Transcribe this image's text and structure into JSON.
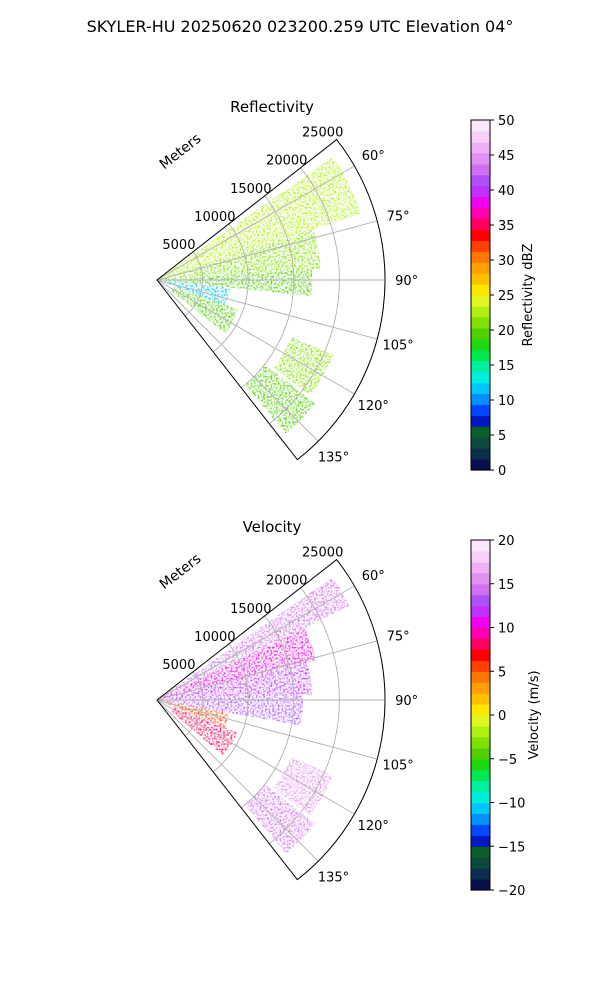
{
  "suptitle": "SKYLER-HU  20250620  023200.259 UTC Elevation 04°",
  "chart_data": [
    {
      "type": "heatmap",
      "subtype": "polar-sector-ppi",
      "title": "Reflectivity",
      "range_label": "Meters",
      "range_ticks": [
        5000,
        10000,
        15000,
        20000,
        25000
      ],
      "range_tick_labels": [
        "5000",
        "10000",
        "15000",
        "20000",
        "25000"
      ],
      "rmax": 25000,
      "theta_range_deg": [
        52,
        142
      ],
      "theta_ticks": [
        60,
        75,
        90,
        105,
        120,
        135
      ],
      "theta_tick_labels": [
        "60°",
        "75°",
        "90°",
        "105°",
        "120°",
        "135°"
      ],
      "grid": true,
      "colorbar": {
        "label": "Reflectivity dBZ",
        "min": 0,
        "max": 50,
        "ticks": [
          0,
          5,
          10,
          15,
          20,
          25,
          30,
          35,
          40,
          45,
          50
        ],
        "tick_labels": [
          "0",
          "5",
          "10",
          "15",
          "20",
          "25",
          "30",
          "35",
          "40",
          "45",
          "50"
        ],
        "colors": [
          "#08104d",
          "#0d2f4e",
          "#0b4a3a",
          "#0a5e2a",
          "#0018c0",
          "#0048ff",
          "#0090ff",
          "#00c8ff",
          "#00eedd",
          "#00f0a0",
          "#00e850",
          "#20d810",
          "#50d000",
          "#80e000",
          "#b0f010",
          "#e0f820",
          "#ffe800",
          "#ffc000",
          "#ffa000",
          "#ff7800",
          "#ff4000",
          "#ff0000",
          "#ff0060",
          "#ff00b0",
          "#f000f0",
          "#c030ff",
          "#b050ff",
          "#d070f0",
          "#e090f0",
          "#f0b0f8",
          "#f8d0fa",
          "#fce8fc"
        ]
      },
      "echo_regions": [
        {
          "theta": [
            55,
            72
          ],
          "range": [
            0,
            23500
          ],
          "value_dbz": 22
        },
        {
          "theta": [
            72,
            86
          ],
          "range": [
            0,
            18000
          ],
          "value_dbz": 21
        },
        {
          "theta": [
            86,
            96
          ],
          "range": [
            0,
            17000
          ],
          "value_dbz": 20
        },
        {
          "theta": [
            96,
            110
          ],
          "range": [
            0,
            8000
          ],
          "value_dbz": 12
        },
        {
          "theta": [
            110,
            128
          ],
          "range": [
            2000,
            9500
          ],
          "value_dbz": 19
        },
        {
          "theta": [
            113,
            127
          ],
          "range": [
            16000,
            21000
          ],
          "value_dbz": 21
        },
        {
          "theta": [
            128,
            140
          ],
          "range": [
            15000,
            22000
          ],
          "value_dbz": 20
        }
      ]
    },
    {
      "type": "heatmap",
      "subtype": "polar-sector-ppi",
      "title": "Velocity",
      "range_label": "Meters",
      "range_ticks": [
        5000,
        10000,
        15000,
        20000,
        25000
      ],
      "range_tick_labels": [
        "5000",
        "10000",
        "15000",
        "20000",
        "25000"
      ],
      "rmax": 25000,
      "theta_range_deg": [
        52,
        142
      ],
      "theta_ticks": [
        60,
        75,
        90,
        105,
        120,
        135
      ],
      "theta_tick_labels": [
        "60°",
        "75°",
        "90°",
        "105°",
        "120°",
        "135°"
      ],
      "grid": true,
      "colorbar": {
        "label": "Velocity (m/s)",
        "min": -20,
        "max": 20,
        "ticks": [
          -20,
          -15,
          -10,
          -5,
          0,
          5,
          10,
          15,
          20
        ],
        "tick_labels": [
          "−20",
          "−15",
          "−10",
          "−5",
          "0",
          "5",
          "10",
          "15",
          "20"
        ],
        "colors": [
          "#08104d",
          "#0d2f4e",
          "#0b4a3a",
          "#0a5e2a",
          "#0018c0",
          "#0048ff",
          "#0090ff",
          "#00c8ff",
          "#00eedd",
          "#00f0a0",
          "#00e850",
          "#20d810",
          "#50d000",
          "#80e000",
          "#b0f010",
          "#e0f820",
          "#ffe800",
          "#ffc000",
          "#ffa000",
          "#ff7800",
          "#ff4000",
          "#ff0000",
          "#ff0060",
          "#ff00b0",
          "#f000f0",
          "#c030ff",
          "#b050ff",
          "#d070f0",
          "#e090f0",
          "#f0b0f8",
          "#f8d0fa",
          "#fce8fc"
        ]
      },
      "echo_regions": [
        {
          "theta": [
            55,
            64
          ],
          "range": [
            0,
            23500
          ],
          "value_ms": 14
        },
        {
          "theta": [
            64,
            76
          ],
          "range": [
            0,
            18000
          ],
          "value_ms": 11
        },
        {
          "theta": [
            76,
            88
          ],
          "range": [
            0,
            17000
          ],
          "value_ms": 12
        },
        {
          "theta": [
            88,
            100
          ],
          "range": [
            0,
            16000
          ],
          "value_ms": 13
        },
        {
          "theta": [
            100,
            112
          ],
          "range": [
            0,
            8000
          ],
          "value_ms": 6
        },
        {
          "theta": [
            112,
            130
          ],
          "range": [
            2000,
            9500
          ],
          "value_ms": 8
        },
        {
          "theta": [
            113,
            127
          ],
          "range": [
            16000,
            21000
          ],
          "value_ms": 15
        },
        {
          "theta": [
            128,
            140
          ],
          "range": [
            15000,
            22000
          ],
          "value_ms": 14
        }
      ]
    }
  ]
}
